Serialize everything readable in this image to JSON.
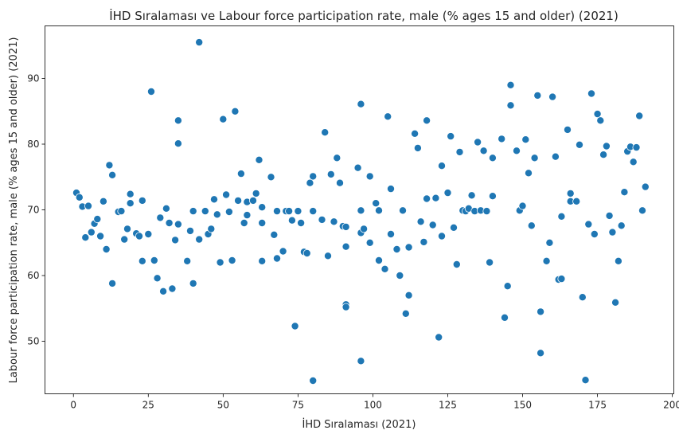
{
  "chart_data": {
    "type": "scatter",
    "title": "İHD Sıralaması ve Labour force participation rate, male (% ages 15 and older) (2021)",
    "xlabel": "İHD Sıralaması (2021)",
    "ylabel": "Labour force participation rate, male (% ages 15 and older) (2021)",
    "xlim": [
      -9.5,
      200.5
    ],
    "ylim": [
      42,
      98
    ],
    "xticks": [
      0,
      25,
      50,
      75,
      100,
      125,
      150,
      175,
      200
    ],
    "yticks": [
      50,
      60,
      70,
      80,
      90
    ],
    "grid": false,
    "color": "#1f77b4",
    "points": [
      [
        1,
        72.6
      ],
      [
        2,
        71.9
      ],
      [
        3,
        70.5
      ],
      [
        4,
        65.8
      ],
      [
        5,
        70.6
      ],
      [
        6,
        66.6
      ],
      [
        7,
        67.9
      ],
      [
        8,
        68.6
      ],
      [
        9,
        66.0
      ],
      [
        10,
        71.3
      ],
      [
        11,
        64.0
      ],
      [
        12,
        76.8
      ],
      [
        13,
        75.3
      ],
      [
        13,
        58.8
      ],
      [
        15,
        69.7
      ],
      [
        16,
        69.8
      ],
      [
        17,
        65.5
      ],
      [
        18,
        67.1
      ],
      [
        19,
        72.4
      ],
      [
        19,
        71.0
      ],
      [
        21,
        66.4
      ],
      [
        22,
        66.0
      ],
      [
        23,
        62.2
      ],
      [
        23,
        71.4
      ],
      [
        25,
        66.3
      ],
      [
        26,
        88.0
      ],
      [
        27,
        62.3
      ],
      [
        28,
        59.6
      ],
      [
        29,
        68.8
      ],
      [
        30,
        57.6
      ],
      [
        31,
        70.2
      ],
      [
        32,
        68.0
      ],
      [
        33,
        58.0
      ],
      [
        34,
        65.4
      ],
      [
        35,
        67.8
      ],
      [
        35,
        83.6
      ],
      [
        35,
        80.1
      ],
      [
        38,
        62.2
      ],
      [
        39,
        66.8
      ],
      [
        40,
        58.8
      ],
      [
        40,
        69.8
      ],
      [
        42,
        65.5
      ],
      [
        42,
        95.5
      ],
      [
        44,
        69.8
      ],
      [
        45,
        66.3
      ],
      [
        46,
        67.1
      ],
      [
        47,
        71.6
      ],
      [
        48,
        69.3
      ],
      [
        49,
        62.0
      ],
      [
        50,
        83.8
      ],
      [
        51,
        72.3
      ],
      [
        52,
        69.7
      ],
      [
        53,
        62.3
      ],
      [
        54,
        85.0
      ],
      [
        55,
        71.4
      ],
      [
        56,
        75.5
      ],
      [
        57,
        68.0
      ],
      [
        58,
        69.2
      ],
      [
        58,
        71.2
      ],
      [
        60,
        71.4
      ],
      [
        61,
        72.5
      ],
      [
        62,
        77.6
      ],
      [
        63,
        62.2
      ],
      [
        63,
        70.4
      ],
      [
        63,
        68.0
      ],
      [
        66,
        75.0
      ],
      [
        67,
        66.2
      ],
      [
        68,
        62.6
      ],
      [
        68,
        69.8
      ],
      [
        70,
        63.7
      ],
      [
        71,
        69.8
      ],
      [
        72,
        69.8
      ],
      [
        73,
        68.4
      ],
      [
        74,
        52.3
      ],
      [
        75,
        69.8
      ],
      [
        76,
        68.0
      ],
      [
        77,
        63.6
      ],
      [
        78,
        63.4
      ],
      [
        79,
        74.1
      ],
      [
        80,
        75.1
      ],
      [
        80,
        69.8
      ],
      [
        80,
        44.0
      ],
      [
        83,
        68.5
      ],
      [
        84,
        81.8
      ],
      [
        85,
        63.0
      ],
      [
        86,
        75.4
      ],
      [
        87,
        68.2
      ],
      [
        88,
        77.9
      ],
      [
        89,
        74.1
      ],
      [
        90,
        67.5
      ],
      [
        91,
        64.4
      ],
      [
        91,
        55.6
      ],
      [
        91,
        55.2
      ],
      [
        91,
        67.4
      ],
      [
        95,
        76.4
      ],
      [
        96,
        86.1
      ],
      [
        96,
        69.9
      ],
      [
        96,
        66.5
      ],
      [
        97,
        67.1
      ],
      [
        96,
        47.0
      ],
      [
        99,
        75.1
      ],
      [
        99,
        65.0
      ],
      [
        101,
        71.0
      ],
      [
        102,
        62.3
      ],
      [
        102,
        69.9
      ],
      [
        104,
        61.0
      ],
      [
        105,
        84.2
      ],
      [
        106,
        73.2
      ],
      [
        106,
        66.3
      ],
      [
        108,
        64.0
      ],
      [
        109,
        60.0
      ],
      [
        110,
        69.9
      ],
      [
        111,
        54.2
      ],
      [
        112,
        57.0
      ],
      [
        112,
        64.3
      ],
      [
        114,
        81.6
      ],
      [
        115,
        79.4
      ],
      [
        116,
        68.2
      ],
      [
        117,
        65.1
      ],
      [
        118,
        71.7
      ],
      [
        118,
        83.6
      ],
      [
        120,
        67.7
      ],
      [
        121,
        71.8
      ],
      [
        122,
        50.6
      ],
      [
        123,
        76.7
      ],
      [
        123,
        66.0
      ],
      [
        125,
        72.6
      ],
      [
        126,
        81.2
      ],
      [
        127,
        67.3
      ],
      [
        128,
        61.7
      ],
      [
        129,
        78.8
      ],
      [
        130,
        69.9
      ],
      [
        131,
        69.8
      ],
      [
        132,
        70.2
      ],
      [
        133,
        72.2
      ],
      [
        134,
        69.8
      ],
      [
        135,
        80.3
      ],
      [
        136,
        69.9
      ],
      [
        137,
        79.0
      ],
      [
        138,
        69.8
      ],
      [
        139,
        62.0
      ],
      [
        140,
        72.1
      ],
      [
        140,
        77.9
      ],
      [
        143,
        80.8
      ],
      [
        144,
        53.6
      ],
      [
        145,
        58.4
      ],
      [
        146,
        85.9
      ],
      [
        146,
        89.0
      ],
      [
        148,
        79.0
      ],
      [
        149,
        69.9
      ],
      [
        150,
        70.6
      ],
      [
        151,
        80.7
      ],
      [
        152,
        75.6
      ],
      [
        153,
        67.6
      ],
      [
        154,
        77.9
      ],
      [
        155,
        87.4
      ],
      [
        156,
        54.5
      ],
      [
        156,
        48.2
      ],
      [
        158,
        62.2
      ],
      [
        159,
        65.0
      ],
      [
        160,
        87.2
      ],
      [
        161,
        78.1
      ],
      [
        162,
        59.4
      ],
      [
        163,
        59.5
      ],
      [
        163,
        69.0
      ],
      [
        165,
        82.2
      ],
      [
        166,
        72.5
      ],
      [
        166,
        71.3
      ],
      [
        168,
        71.3
      ],
      [
        169,
        79.9
      ],
      [
        170,
        56.7
      ],
      [
        171,
        44.1
      ],
      [
        172,
        67.8
      ],
      [
        173,
        87.7
      ],
      [
        174,
        66.3
      ],
      [
        175,
        84.6
      ],
      [
        176,
        83.6
      ],
      [
        177,
        78.4
      ],
      [
        178,
        79.7
      ],
      [
        179,
        69.1
      ],
      [
        180,
        66.6
      ],
      [
        181,
        55.9
      ],
      [
        182,
        62.2
      ],
      [
        183,
        67.6
      ],
      [
        184,
        72.7
      ],
      [
        185,
        78.9
      ],
      [
        186,
        79.6
      ],
      [
        187,
        77.3
      ],
      [
        188,
        79.5
      ],
      [
        189,
        84.3
      ],
      [
        190,
        69.9
      ],
      [
        191,
        73.5
      ]
    ]
  }
}
